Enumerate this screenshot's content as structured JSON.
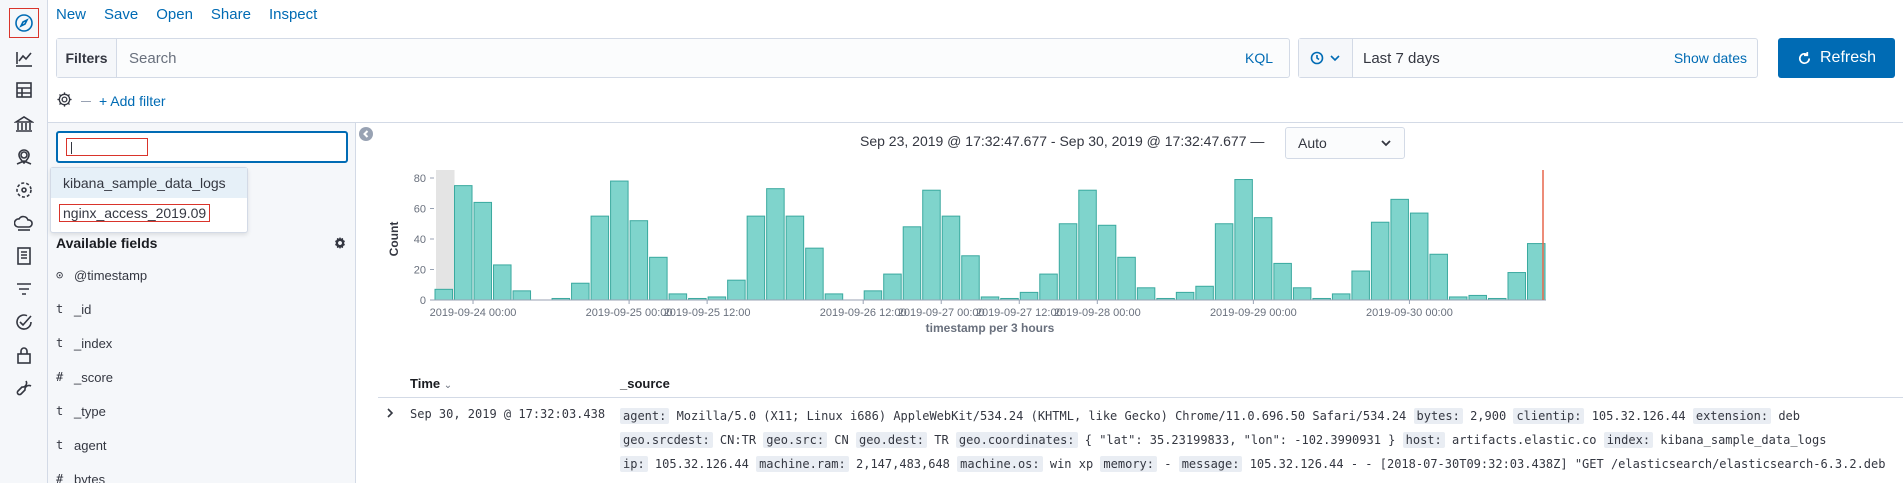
{
  "nav": {
    "items": [
      {
        "name": "discover-icon",
        "active": true
      },
      {
        "name": "visualize-icon"
      },
      {
        "name": "dashboard-icon"
      },
      {
        "name": "canvas-icon"
      },
      {
        "name": "maps-icon"
      },
      {
        "name": "ml-icon"
      },
      {
        "name": "infrastructure-icon"
      },
      {
        "name": "logs-icon"
      },
      {
        "name": "apm-icon"
      },
      {
        "name": "uptime-icon"
      },
      {
        "name": "siem-icon"
      },
      {
        "name": "dev-tools-icon"
      }
    ]
  },
  "topmenu": {
    "new": "New",
    "save": "Save",
    "open": "Open",
    "share": "Share",
    "inspect": "Inspect"
  },
  "querybar": {
    "filters_label": "Filters",
    "search_placeholder": "Search",
    "kql": "KQL"
  },
  "datepicker": {
    "value": "Last 7 days",
    "show_dates": "Show dates"
  },
  "refresh": {
    "label": "Refresh"
  },
  "filter_row": {
    "add_filter": "+ Add filter"
  },
  "sidebar": {
    "index_input_value": "",
    "index_options": [
      "kibana_sample_data_logs",
      "nginx_access_2019.09"
    ],
    "available_fields_title": "Available fields",
    "fields": [
      {
        "type": "⊙",
        "name": "@timestamp"
      },
      {
        "type": "t",
        "name": "_id"
      },
      {
        "type": "t",
        "name": "_index"
      },
      {
        "type": "#",
        "name": "_score"
      },
      {
        "type": "t",
        "name": "_type"
      },
      {
        "type": "t",
        "name": "agent"
      },
      {
        "type": "#",
        "name": "bytes"
      }
    ]
  },
  "main": {
    "range_text": "Sep 23, 2019 @ 17:32:47.677 - Sep 30, 2019 @ 17:32:47.677 —",
    "interval": "Auto"
  },
  "chart_data": {
    "type": "bar",
    "xlabel": "timestamp per 3 hours",
    "ylabel": "Count",
    "ylim": [
      0,
      80
    ],
    "yticks": [
      0,
      20,
      40,
      60,
      80
    ],
    "x_tick_labels": [
      {
        "label": "2019-09-24 00:00",
        "bin": 2
      },
      {
        "label": "2019-09-25 00:00",
        "bin": 10
      },
      {
        "label": "2019-09-25 12:00",
        "bin": 14
      },
      {
        "label": "2019-09-26 12:00",
        "bin": 22
      },
      {
        "label": "2019-09-27 00:00",
        "bin": 26
      },
      {
        "label": "2019-09-27 12:00",
        "bin": 30
      },
      {
        "label": "2019-09-28 00:00",
        "bin": 34
      },
      {
        "label": "2019-09-29 00:00",
        "bin": 42
      },
      {
        "label": "2019-09-30 00:00",
        "bin": 50
      }
    ],
    "values": [
      7,
      75,
      64,
      23,
      6,
      0,
      1,
      11,
      55,
      78,
      52,
      28,
      4,
      1,
      2,
      13,
      55,
      73,
      55,
      34,
      4,
      0,
      6,
      17,
      48,
      72,
      55,
      29,
      2,
      1,
      5,
      17,
      50,
      72,
      49,
      28,
      8,
      1,
      5,
      9,
      50,
      79,
      54,
      24,
      8,
      1,
      4,
      19,
      51,
      66,
      57,
      30,
      2,
      3,
      1,
      18,
      37
    ],
    "bar_color": "#7fd4cc",
    "bar_stroke": "#3aa99f"
  },
  "table": {
    "col_time": "Time",
    "col_source": "_source",
    "row": {
      "time": "Sep 30, 2019 @ 17:32:03.438",
      "source": [
        [
          "agent:",
          "Mozilla/5.0 (X11; Linux i686) AppleWebKit/534.24 (KHTML, like Gecko) Chrome/11.0.696.50 Safari/534.24"
        ],
        [
          "bytes:",
          "2,900"
        ],
        [
          "clientip:",
          "105.32.126.44"
        ],
        [
          "extension:",
          "deb"
        ],
        [
          "geo.srcdest:",
          "CN:TR"
        ],
        [
          "geo.src:",
          "CN"
        ],
        [
          "geo.dest:",
          "TR"
        ],
        [
          "geo.coordinates:",
          "{ \"lat\": 35.23199833, \"lon\": -102.3990931 }"
        ],
        [
          "host:",
          "artifacts.elastic.co"
        ],
        [
          "index:",
          "kibana_sample_data_logs"
        ],
        [
          "ip:",
          "105.32.126.44"
        ],
        [
          "machine.ram:",
          "2,147,483,648"
        ],
        [
          "machine.os:",
          "win xp"
        ],
        [
          "memory:",
          " - "
        ],
        [
          "message:",
          "105.32.126.44 - - [2018-07-30T09:32:03.438Z] \"GET /elasticsearch/elasticsearch-6.3.2.deb"
        ]
      ]
    }
  }
}
